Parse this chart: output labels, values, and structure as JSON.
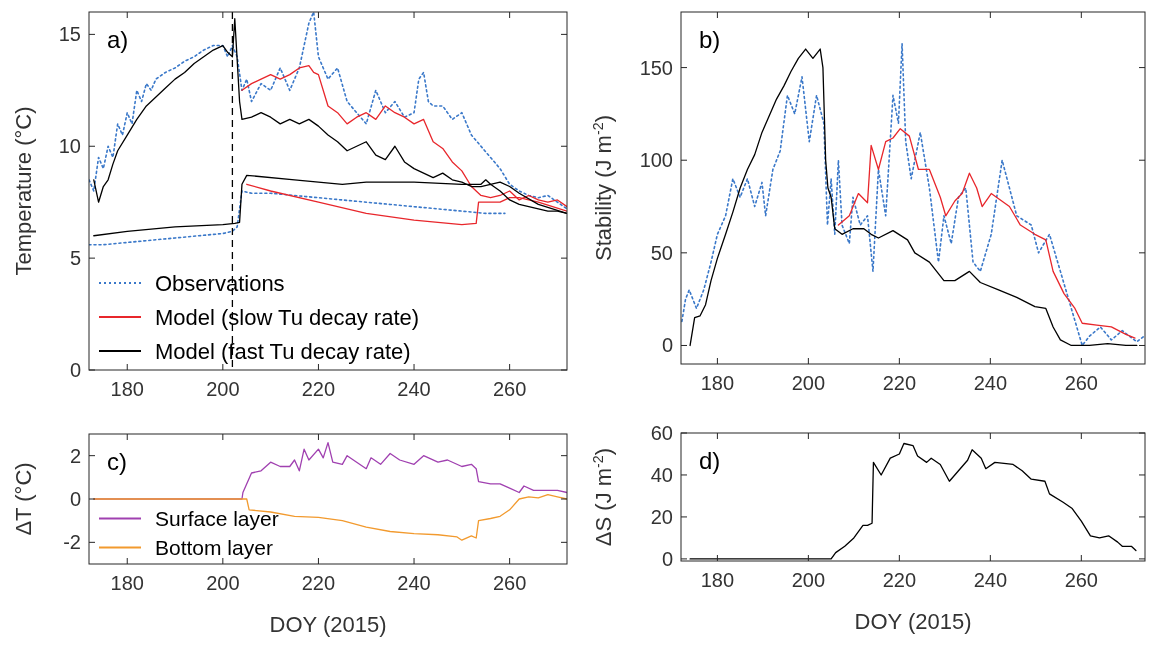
{
  "chart_data": [
    {
      "type": "line",
      "title": "a)",
      "ylabel": "Temperature (°C)",
      "xlim": [
        172,
        272
      ],
      "xticks": [
        180,
        200,
        220,
        240,
        260
      ],
      "ylim": [
        0,
        16
      ],
      "yticks": [
        0,
        5,
        10,
        15
      ],
      "legend": "bottom left",
      "grid": false,
      "ref_lines": [
        {
          "axis": "x",
          "value": 202,
          "color": "#000000",
          "line_style": "dashed"
        }
      ],
      "series": [
        {
          "name": "Observations",
          "color": "#3a78c9",
          "line_style": "dotted",
          "x": [
            172,
            173,
            174,
            175,
            176,
            177,
            178,
            179,
            180,
            181,
            182,
            183,
            184,
            185,
            186,
            188,
            190,
            192,
            194,
            196,
            198,
            200,
            201,
            202,
            203,
            204,
            205,
            206,
            208,
            210,
            212,
            214,
            216,
            217,
            218,
            219,
            220,
            222,
            224,
            226,
            228,
            230,
            232,
            234,
            236,
            238,
            240,
            241,
            242,
            243,
            244,
            246,
            248,
            250,
            252,
            254,
            256,
            258,
            260,
            262,
            264,
            266,
            268,
            270,
            272
          ],
          "values": [
            8.5,
            8,
            9.5,
            9,
            10,
            9.5,
            11,
            10.5,
            11.5,
            11,
            12.5,
            12,
            12.8,
            12.5,
            13,
            13.3,
            13.5,
            13.8,
            14,
            14.3,
            14.5,
            14.5,
            14,
            14.5,
            14,
            12.5,
            13,
            12,
            12.8,
            12.5,
            13.5,
            12.5,
            13.5,
            14.5,
            15.5,
            16,
            14,
            13,
            13.5,
            12,
            11.5,
            11,
            12.5,
            11.5,
            12,
            11.3,
            11.5,
            13,
            13.3,
            12,
            11.8,
            11.8,
            11.2,
            11.5,
            10.5,
            10,
            9.5,
            9,
            8.3,
            8,
            7.8,
            7.7,
            7.8,
            7.5,
            7.2
          ]
        },
        {
          "color": "#3a78c9",
          "line_style": "dotted",
          "x": [
            172,
            175,
            180,
            185,
            190,
            195,
            200,
            202,
            203,
            204,
            206,
            210,
            215,
            220,
            225,
            230,
            235,
            240,
            245,
            250,
            255,
            258,
            259
          ],
          "values": [
            5.6,
            5.6,
            5.7,
            5.8,
            5.9,
            6.0,
            6.1,
            6.2,
            6.4,
            8.0,
            7.9,
            7.9,
            7.8,
            7.7,
            7.6,
            7.5,
            7.4,
            7.3,
            7.2,
            7.1,
            7.0,
            7.0,
            7.0
          ]
        },
        {
          "name": "Model (slow Tu decay rate)",
          "color": "#e8262b",
          "line_style": "solid",
          "x": [
            204,
            206,
            208,
            210,
            212,
            214,
            216,
            218,
            219,
            220,
            222,
            224,
            226,
            228,
            230,
            232,
            234,
            236,
            238,
            240,
            242,
            244,
            246,
            248,
            250,
            252,
            254,
            256,
            258,
            260,
            262,
            264,
            266,
            268,
            270,
            272
          ],
          "values": [
            12.5,
            12.8,
            13,
            13.2,
            13,
            13.2,
            13.5,
            13.6,
            13.3,
            13.2,
            11.8,
            11.5,
            11,
            11.3,
            11.5,
            11.2,
            11.8,
            11.5,
            11.3,
            11,
            11.2,
            10.2,
            9.9,
            9.3,
            8.9,
            8.2,
            7.8,
            7.7,
            7.8,
            8,
            7.6,
            7.8,
            7.6,
            7.5,
            7.6,
            7.3
          ]
        },
        {
          "color": "#e8262b",
          "line_style": "solid",
          "x": [
            205,
            210,
            220,
            230,
            240,
            250,
            253,
            253.5,
            256,
            258,
            260,
            262,
            266,
            272
          ],
          "values": [
            8.3,
            8.0,
            7.5,
            7.0,
            6.7,
            6.5,
            6.55,
            7.5,
            7.5,
            7.5,
            7.7,
            7.7,
            7.5,
            7.1
          ]
        },
        {
          "name": "Model (fast Tu decay rate)",
          "color": "#000000",
          "line_style": "solid",
          "x": [
            173,
            174,
            175,
            176,
            177,
            178,
            180,
            182,
            184,
            186,
            188,
            190,
            192,
            194,
            196,
            198,
            200,
            201,
            202,
            202.5,
            203.5,
            204,
            206,
            208,
            210,
            212,
            214,
            216,
            218,
            220,
            222,
            224,
            226,
            228,
            230,
            232,
            234,
            236,
            238,
            240,
            242,
            244,
            246,
            248,
            250,
            252,
            254,
            256,
            258,
            260,
            262,
            264,
            266,
            268,
            270,
            272
          ],
          "values": [
            8.5,
            7.5,
            8.2,
            8.5,
            9.2,
            9.8,
            10.5,
            11.2,
            11.8,
            12.2,
            12.6,
            13,
            13.3,
            13.7,
            14,
            14.3,
            14.5,
            14.2,
            14,
            15.7,
            12,
            11.2,
            11.3,
            11.5,
            11.3,
            11.0,
            11.2,
            11.0,
            11.2,
            10.9,
            10.5,
            10.2,
            9.8,
            10.0,
            10.2,
            9.6,
            9.4,
            10.0,
            9.3,
            9.0,
            8.8,
            8.6,
            8.8,
            8.5,
            8.4,
            8.2,
            8.2,
            8.3,
            8.0,
            7.6,
            7.4,
            7.3,
            7.2,
            7.1,
            7.1,
            7.0
          ]
        },
        {
          "color": "#000000",
          "line_style": "solid",
          "x": [
            173,
            180,
            190,
            200,
            202.5,
            203.5,
            204,
            205,
            215,
            225,
            230,
            240,
            250,
            254,
            255,
            256,
            258,
            260,
            262,
            266,
            272
          ],
          "values": [
            6.0,
            6.2,
            6.4,
            6.5,
            6.55,
            6.6,
            8.3,
            8.7,
            8.5,
            8.3,
            8.4,
            8.4,
            8.3,
            8.3,
            8.5,
            8.3,
            8.4,
            8.2,
            7.9,
            7.4,
            7.0
          ]
        }
      ]
    },
    {
      "type": "line",
      "title": "b)",
      "ylabel": "Stability (J m$^{-2}$)",
      "xlim": [
        172,
        274
      ],
      "xticks": [
        180,
        200,
        220,
        240,
        260
      ],
      "ylim": [
        -10,
        180
      ],
      "yticks": [
        0,
        50,
        100,
        150
      ],
      "grid": false,
      "series": [
        {
          "color": "#3a78c9",
          "line_style": "dotted",
          "x": [
            172.2,
            173,
            173.8,
            175.4,
            177,
            178.6,
            180,
            181.8,
            183.4,
            185,
            186.6,
            188.2,
            189.8,
            190.6,
            192.2,
            193.8,
            195.4,
            197,
            198.6,
            200.2,
            201.8,
            203.4,
            204.2,
            205,
            205.8,
            206.6,
            207.4,
            209,
            209.8,
            211.4,
            213,
            214.2,
            215.4,
            217,
            218.6,
            219.8,
            220.6,
            221.4,
            222.6,
            224.6,
            226.6,
            228.6,
            229.8,
            231.4,
            233,
            234.6,
            236.2,
            237.8,
            240.2,
            242.6,
            244.2,
            245.8,
            249,
            250.6,
            253,
            255.4,
            257.8,
            260.2,
            261.8,
            264.2,
            266.6,
            269,
            272.2,
            273.8
          ],
          "values": [
            13,
            25,
            30,
            20,
            30,
            45,
            60,
            70,
            90,
            80,
            90,
            75,
            88,
            70,
            95,
            105,
            135,
            125,
            145,
            110,
            135,
            120,
            65,
            90,
            60,
            100,
            65,
            55,
            80,
            65,
            70,
            40,
            95,
            70,
            135,
            120,
            163,
            110,
            90,
            115,
            85,
            45,
            70,
            55,
            80,
            85,
            45,
            40,
            60,
            100,
            85,
            70,
            65,
            50,
            60,
            40,
            20,
            0,
            5,
            10,
            3,
            8,
            2,
            5
          ]
        },
        {
          "color": "#e8262b",
          "line_style": "solid",
          "x": [
            206.6,
            209,
            211,
            213,
            213.8,
            215.4,
            217,
            218.6,
            220.2,
            222.2,
            224.2,
            226.6,
            229,
            230.2,
            232.2,
            233.8,
            235.4,
            237,
            238.2,
            240.2,
            244.2,
            246.6,
            249.8,
            252.2,
            253.8,
            256.2,
            258.6,
            260.2,
            263.4,
            266.6,
            269.8,
            271.8
          ],
          "values": [
            65,
            70,
            82,
            77,
            108,
            95,
            110,
            112,
            117,
            113,
            95,
            95,
            80,
            70,
            78,
            82,
            93,
            85,
            75,
            82,
            75,
            65,
            60,
            57,
            40,
            28,
            20,
            12,
            11,
            10,
            6,
            4
          ]
        },
        {
          "color": "#000000",
          "line_style": "solid",
          "x": [
            174,
            175,
            176.2,
            177.4,
            178.6,
            180,
            181.8,
            183.4,
            185,
            186.6,
            188.2,
            189.8,
            191.4,
            193,
            194.6,
            196.2,
            197.8,
            199.4,
            201,
            202.6,
            203.2,
            203.8,
            204.3,
            205,
            205.8,
            207.4,
            209.8,
            212.2,
            213.8,
            215.4,
            218.6,
            221.8,
            223.4,
            226.6,
            229.8,
            232.2,
            235.4,
            237.8,
            241.8,
            245.8,
            249.8,
            252.2,
            253.8,
            255.4,
            257.8,
            261.8,
            265.8,
            269.8,
            272.2
          ],
          "values": [
            0,
            15,
            16,
            22,
            35,
            47,
            60,
            72,
            85,
            95,
            103,
            115,
            124,
            133,
            140,
            148,
            155,
            160,
            155,
            160,
            150,
            100,
            85,
            80,
            63,
            60,
            63,
            63,
            60,
            58,
            62,
            57,
            50,
            45,
            35,
            35,
            40,
            34,
            30,
            26,
            21,
            20,
            10,
            3,
            0,
            0,
            1,
            0,
            0
          ]
        }
      ]
    },
    {
      "type": "line",
      "title": "c)",
      "xlabel": "DOY (2015)",
      "ylabel": "ΔT (°C)",
      "xlim": [
        172,
        272
      ],
      "xticks": [
        180,
        200,
        220,
        240,
        260
      ],
      "ylim": [
        -3,
        3
      ],
      "yticks": [
        -2,
        0,
        2
      ],
      "legend": "bottom left",
      "grid": false,
      "series": [
        {
          "name": "Surface layer",
          "color": "#a040b0",
          "line_style": "solid",
          "x": [
            173,
            204,
            204.2,
            206,
            208,
            210,
            212,
            214,
            215,
            216,
            217,
            218,
            220,
            221,
            222,
            223,
            225,
            226,
            228,
            230,
            231,
            233,
            235,
            237,
            240,
            242,
            245,
            247,
            250,
            252,
            253,
            253.5,
            256,
            258,
            260,
            262,
            263,
            265,
            268,
            270,
            272
          ],
          "values": [
            0,
            0,
            0.3,
            1.2,
            1.3,
            1.7,
            1.5,
            1.5,
            1.8,
            1.3,
            2.3,
            1.8,
            2.3,
            1.9,
            2.6,
            1.7,
            1.6,
            2.0,
            1.7,
            1.4,
            1.9,
            1.6,
            2.1,
            1.8,
            1.6,
            2.0,
            1.7,
            1.8,
            1.5,
            1.6,
            1.4,
            0.8,
            0.7,
            0.7,
            0.5,
            0.3,
            0.6,
            0.4,
            0.4,
            0.4,
            0.3
          ]
        },
        {
          "name": "Bottom layer",
          "color": "#f29a2e",
          "line_style": "solid",
          "x": [
            173,
            205,
            205.5,
            210,
            215,
            220,
            225,
            230,
            235,
            240,
            245,
            249,
            250,
            252,
            253,
            253.5,
            256,
            258,
            260,
            262,
            264,
            266,
            268,
            270,
            272
          ],
          "values": [
            0,
            0,
            -0.5,
            -0.6,
            -0.8,
            -0.85,
            -1.0,
            -1.3,
            -1.5,
            -1.6,
            -1.65,
            -1.75,
            -1.9,
            -1.7,
            -1.8,
            -1.0,
            -0.9,
            -0.8,
            -0.5,
            0.0,
            0.1,
            0.05,
            0.2,
            0.1,
            0.0
          ]
        }
      ]
    },
    {
      "type": "line",
      "title": "d)",
      "xlabel": "DOY (2015)",
      "ylabel": "ΔS  (J m$^{-2}$)",
      "xlim": [
        172,
        274
      ],
      "xticks": [
        180,
        200,
        220,
        240,
        260
      ],
      "ylim": [
        -1,
        60
      ],
      "yticks": [
        0,
        20,
        40,
        60
      ],
      "grid": false,
      "series": [
        {
          "color": "#000000",
          "line_style": "solid",
          "x": [
            174,
            205,
            206,
            208,
            210,
            212,
            213,
            214,
            214.3,
            216,
            218,
            220,
            221,
            223,
            224,
            226,
            227,
            229,
            231,
            233,
            235,
            236,
            238,
            239,
            241,
            245,
            247,
            249,
            252,
            253,
            256,
            258,
            260,
            262,
            264,
            266,
            268,
            269,
            271,
            272
          ],
          "values": [
            0,
            0,
            3,
            6,
            10,
            16,
            16,
            17,
            46,
            40,
            48,
            50,
            55,
            54,
            49,
            46,
            48,
            45,
            37,
            42,
            47,
            52,
            48,
            43,
            46,
            45,
            42,
            38,
            37,
            31,
            27,
            24,
            18,
            11,
            10,
            11,
            8,
            6,
            6,
            4
          ]
        }
      ]
    }
  ]
}
